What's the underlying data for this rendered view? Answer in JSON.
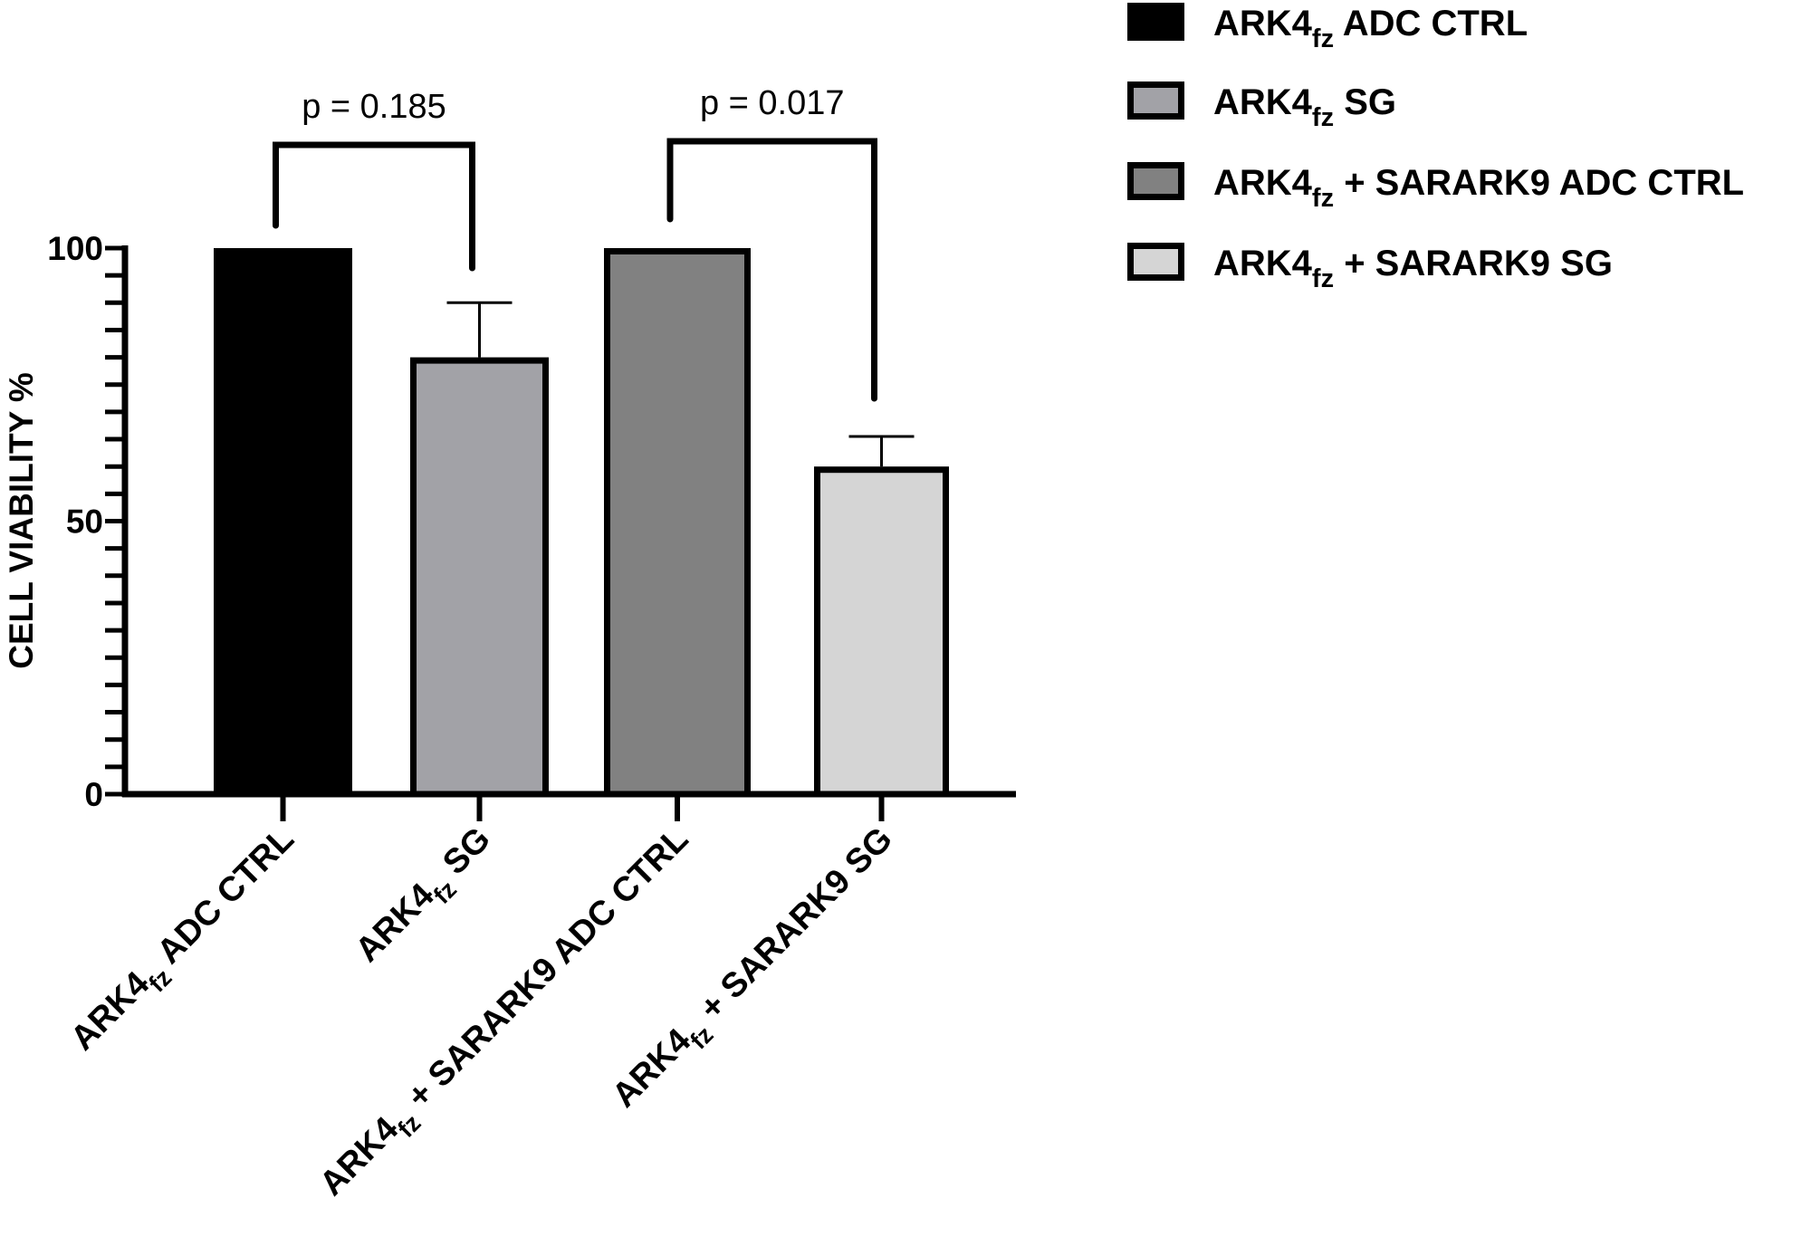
{
  "chart_data": {
    "type": "bar",
    "ylabel": "CELL VIABILITY %",
    "xlabel": "",
    "ylim": [
      0,
      100
    ],
    "yticks": [
      0,
      50,
      100
    ],
    "yminor_step": 5,
    "grid": false,
    "legend_position": "top-right",
    "categories": [
      {
        "main": "ARK4",
        "sub": "fz",
        "rest": " ADC CTRL"
      },
      {
        "main": "ARK4",
        "sub": "fz",
        "rest": " SG"
      },
      {
        "main": "ARK4",
        "sub": "fz",
        "rest": " + SARARK9 ADC CTRL"
      },
      {
        "main": "ARK4",
        "sub": "fz",
        "rest": " + SARARK9 SG"
      }
    ],
    "values": [
      100,
      80,
      100,
      60
    ],
    "error_upper": [
      null,
      90,
      null,
      65.5
    ],
    "colors": [
      "#000000",
      "#a2a2a7",
      "#818181",
      "#d5d5d5"
    ],
    "comparisons": [
      {
        "from": 0,
        "to": 1,
        "label": "p = 0.185"
      },
      {
        "from": 2,
        "to": 3,
        "label": "p = 0.017"
      }
    ]
  }
}
